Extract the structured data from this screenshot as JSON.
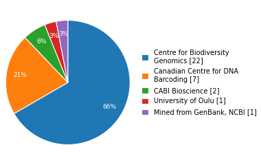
{
  "chart_data": {
    "type": "pie",
    "categories": [
      "Centre for Biodiversity\nGenomics [22]",
      "Canadian Centre for DNA\nBarcoding [7]",
      "CABI Bioscience [2]",
      "University of Oulu [1]",
      "Mined from GenBank, NCBI [1]"
    ],
    "values": [
      66,
      21,
      6,
      3,
      3
    ],
    "data_labels": true,
    "value_labels": [
      "66%",
      "21%",
      "6%",
      "3%",
      "3%"
    ],
    "legend": "center left"
  }
}
